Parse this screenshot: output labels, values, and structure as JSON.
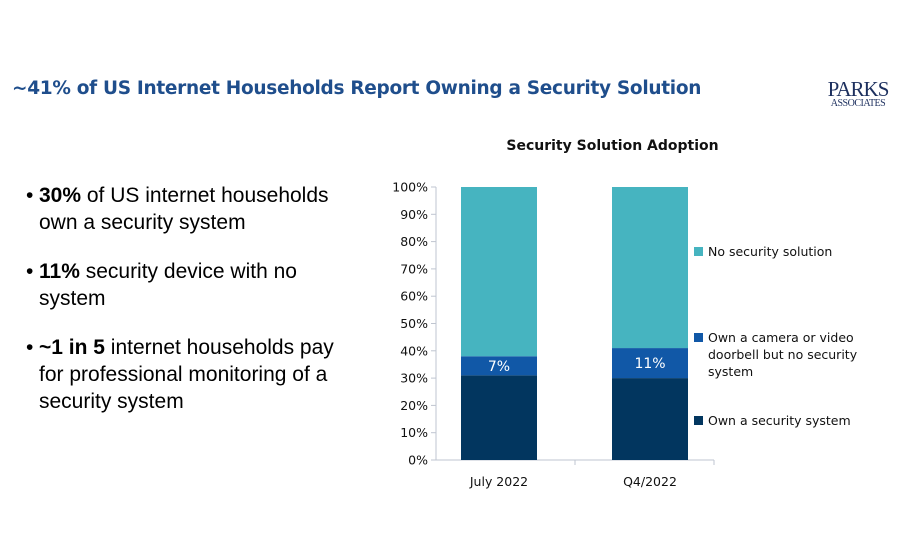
{
  "header": {
    "title": "~41% of US Internet Households Report Owning a Security Solution",
    "logo_line1": "PARKS",
    "logo_line2": "ASSOCIATES"
  },
  "bullets": [
    {
      "bold": "30%",
      "rest": " of US internet households own a security system"
    },
    {
      "bold": "11%",
      "rest": " security device with no system"
    },
    {
      "bold": "~1 in 5",
      "rest": " internet households pay for professional monitoring of a security system"
    }
  ],
  "colors": {
    "title": "#1f4e8c",
    "own_system": "#02365f",
    "device_no_system": "#1158a7",
    "no_solution": "#46b4c0",
    "axis": "#bfc5d0"
  },
  "chart_data": {
    "type": "bar",
    "stacked": true,
    "title": "Security Solution Adoption",
    "xlabel": "",
    "ylabel": "",
    "categories": [
      "July 2022",
      "Q4/2022"
    ],
    "ylim": [
      0,
      100
    ],
    "yticks": [
      "0%",
      "10%",
      "20%",
      "30%",
      "40%",
      "50%",
      "60%",
      "70%",
      "80%",
      "90%",
      "100%"
    ],
    "series": [
      {
        "name": "Own a security system",
        "values": [
          31,
          30
        ],
        "color_key": "own_system",
        "labels": [
          null,
          null
        ]
      },
      {
        "name": "Own a camera or video doorbell but no security system",
        "values": [
          7,
          11
        ],
        "color_key": "device_no_system",
        "labels": [
          "7%",
          "11%"
        ]
      },
      {
        "name": "No security solution",
        "values": [
          62,
          59
        ],
        "color_key": "no_solution",
        "labels": [
          null,
          null
        ]
      }
    ],
    "legend": {
      "position": "right",
      "order": [
        "No security solution",
        "Own a camera or video doorbell but no security system",
        "Own a security system"
      ]
    },
    "grid": false
  }
}
